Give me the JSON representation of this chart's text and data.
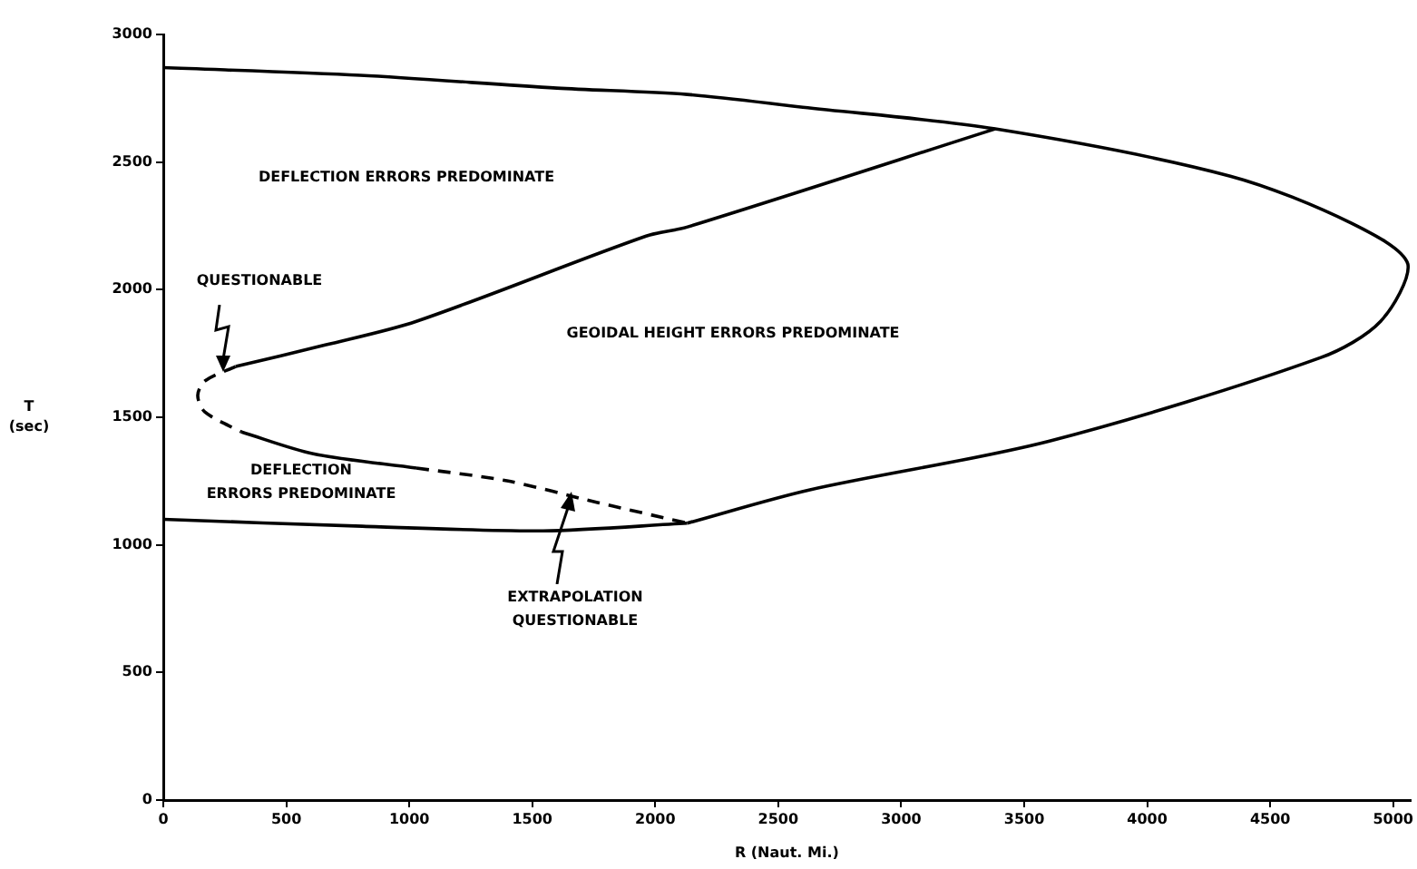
{
  "chart_data": {
    "type": "line",
    "xlabel": "R (Naut. Mi.)",
    "ylabel": "T\n(sec)",
    "xlim": [
      0,
      5070
    ],
    "ylim": [
      0,
      3000
    ],
    "xticks": [
      0,
      500,
      1000,
      1500,
      2000,
      2500,
      3000,
      3500,
      4000,
      4500,
      5000
    ],
    "yticks": [
      0,
      500,
      1000,
      1500,
      2000,
      2500,
      3000
    ],
    "grid": false,
    "legend": false,
    "marker": "none",
    "series": [
      {
        "color": "#000000",
        "line_style": "solid",
        "x": [
          0,
          800,
          1600,
          2130,
          2600,
          3382,
          4338,
          4831,
          5060,
          4949,
          4706,
          3603,
          2625,
          2130
        ],
        "values": [
          2870,
          2840,
          2790,
          2765,
          2715,
          2630,
          2445,
          2260,
          2100,
          1876,
          1734,
          1407,
          1215,
          1085
        ]
      },
      {
        "color": "#000000",
        "line_style": "solid",
        "x": [
          3382,
          2132,
          1963,
          1029,
          662,
          294
        ],
        "values": [
          2630,
          2246,
          2210,
          1876,
          1784,
          1699
        ]
      },
      {
        "color": "#000000",
        "line_style": "dashed",
        "x": [
          294,
          169,
          140,
          169,
          316
        ],
        "values": [
          1699,
          1642,
          1585,
          1521,
          1443
        ]
      },
      {
        "color": "#000000",
        "line_style": "solid",
        "x": [
          316,
          610,
          1029
        ],
        "values": [
          1443,
          1357,
          1301
        ]
      },
      {
        "color": "#000000",
        "line_style": "dashed",
        "x": [
          1029,
          1397,
          1765,
          2130
        ],
        "values": [
          1301,
          1251,
          1166,
          1085
        ]
      },
      {
        "color": "#000000",
        "line_style": "solid",
        "x": [
          0,
          809,
          1544,
          2130
        ],
        "values": [
          1100,
          1073,
          1055,
          1085
        ]
      }
    ],
    "annotations": [
      "DEFLECTION ERRORS PREDOMINATE",
      "QUESTIONABLE",
      "GEOIDAL HEIGHT ERRORS PREDOMINATE",
      "DEFLECTION\nERRORS PREDOMINATE",
      "EXTRAPOLATION\nQUESTIONABLE"
    ]
  }
}
